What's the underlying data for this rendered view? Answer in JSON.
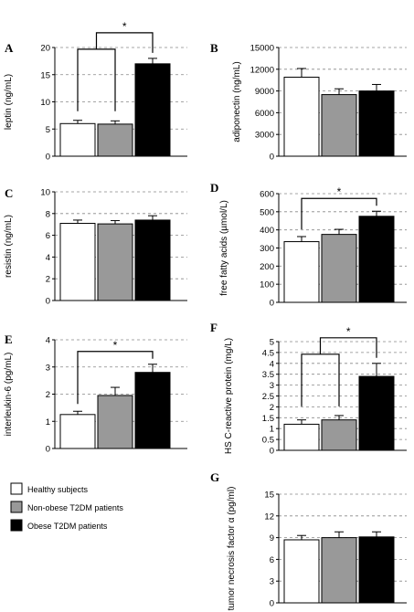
{
  "colors": {
    "healthy": "#ffffff",
    "non_obese": "#999999",
    "obese": "#000000",
    "grid": "#888888"
  },
  "legend": {
    "items": [
      {
        "label": "Healthy subjects",
        "color": "#ffffff"
      },
      {
        "label": "Non-obese T2DM patients",
        "color": "#999999"
      },
      {
        "label": "Obese T2DM patients",
        "color": "#000000"
      }
    ]
  },
  "chart_data": [
    {
      "panel": "A",
      "type": "bar",
      "ylabel": "leptin (ng/mL)",
      "ylim": [
        0,
        20
      ],
      "yticks": [
        0,
        5,
        10,
        15,
        20
      ],
      "grid": true,
      "series": [
        {
          "name": "Healthy subjects",
          "value": 6.0,
          "error": 0.6
        },
        {
          "name": "Non-obese T2DM patients",
          "value": 5.9,
          "error": 0.6
        },
        {
          "name": "Obese T2DM patients",
          "value": 17.0,
          "error": 1.0
        }
      ],
      "significance": {
        "label": "*",
        "type": "group",
        "left": [
          0,
          1
        ],
        "right": 2
      }
    },
    {
      "panel": "B",
      "type": "bar",
      "ylabel": "adiponectin (ng/mL)",
      "ylim": [
        0,
        15000
      ],
      "yticks": [
        0,
        3000,
        6000,
        9000,
        12000,
        15000
      ],
      "grid": true,
      "series": [
        {
          "name": "Healthy subjects",
          "value": 10900,
          "error": 1200
        },
        {
          "name": "Non-obese T2DM patients",
          "value": 8500,
          "error": 800
        },
        {
          "name": "Obese T2DM patients",
          "value": 9000,
          "error": 900
        }
      ]
    },
    {
      "panel": "C",
      "type": "bar",
      "ylabel": "resistin (ng/mL)",
      "ylim": [
        0,
        10
      ],
      "yticks": [
        0,
        2,
        4,
        6,
        8,
        10
      ],
      "grid": true,
      "series": [
        {
          "name": "Healthy subjects",
          "value": 7.1,
          "error": 0.3
        },
        {
          "name": "Non-obese T2DM patients",
          "value": 7.05,
          "error": 0.3
        },
        {
          "name": "Obese T2DM patients",
          "value": 7.4,
          "error": 0.4
        }
      ]
    },
    {
      "panel": "D",
      "type": "bar",
      "ylabel": "free fatty acids (µmol/L)",
      "ylim": [
        0,
        600
      ],
      "yticks": [
        0,
        100,
        200,
        300,
        400,
        500,
        600
      ],
      "grid": true,
      "series": [
        {
          "name": "Healthy subjects",
          "value": 335,
          "error": 28
        },
        {
          "name": "Non-obese T2DM patients",
          "value": 375,
          "error": 28
        },
        {
          "name": "Obese T2DM patients",
          "value": 475,
          "error": 28
        }
      ],
      "significance": {
        "label": "*",
        "type": "pair",
        "left": 0,
        "right": 2
      }
    },
    {
      "panel": "E",
      "type": "bar",
      "ylabel": "interleukin-6 (pg/mL)",
      "ylim": [
        0,
        4
      ],
      "yticks": [
        0,
        1,
        2,
        3,
        4
      ],
      "grid": true,
      "series": [
        {
          "name": "Healthy subjects",
          "value": 1.25,
          "error": 0.12
        },
        {
          "name": "Non-obese T2DM patients",
          "value": 1.95,
          "error": 0.3
        },
        {
          "name": "Obese T2DM patients",
          "value": 2.8,
          "error": 0.3
        }
      ],
      "significance": {
        "label": "*",
        "type": "pair",
        "left": 0,
        "right": 2
      }
    },
    {
      "panel": "F",
      "type": "bar",
      "ylabel": "HS C-reactive protein (mg/L)",
      "ylim": [
        0,
        5
      ],
      "yticks": [
        0,
        0.5,
        1,
        1.5,
        2,
        2.5,
        3,
        3.5,
        4,
        4.5,
        5
      ],
      "grid": true,
      "series": [
        {
          "name": "Healthy subjects",
          "value": 1.2,
          "error": 0.2
        },
        {
          "name": "Non-obese T2DM patients",
          "value": 1.4,
          "error": 0.2
        },
        {
          "name": "Obese T2DM patients",
          "value": 3.4,
          "error": 0.6
        }
      ],
      "significance": {
        "label": "*",
        "type": "group",
        "left": [
          0,
          1
        ],
        "right": 2
      }
    },
    {
      "panel": "G",
      "type": "bar",
      "ylabel": "tumor necrosis factor α (pg/ml)",
      "ylim": [
        0,
        15
      ],
      "yticks": [
        0,
        3,
        6,
        9,
        12,
        15
      ],
      "grid": true,
      "series": [
        {
          "name": "Healthy subjects",
          "value": 8.7,
          "error": 0.6
        },
        {
          "name": "Non-obese T2DM patients",
          "value": 9.0,
          "error": 0.8
        },
        {
          "name": "Obese T2DM patients",
          "value": 9.1,
          "error": 0.7
        }
      ]
    }
  ]
}
